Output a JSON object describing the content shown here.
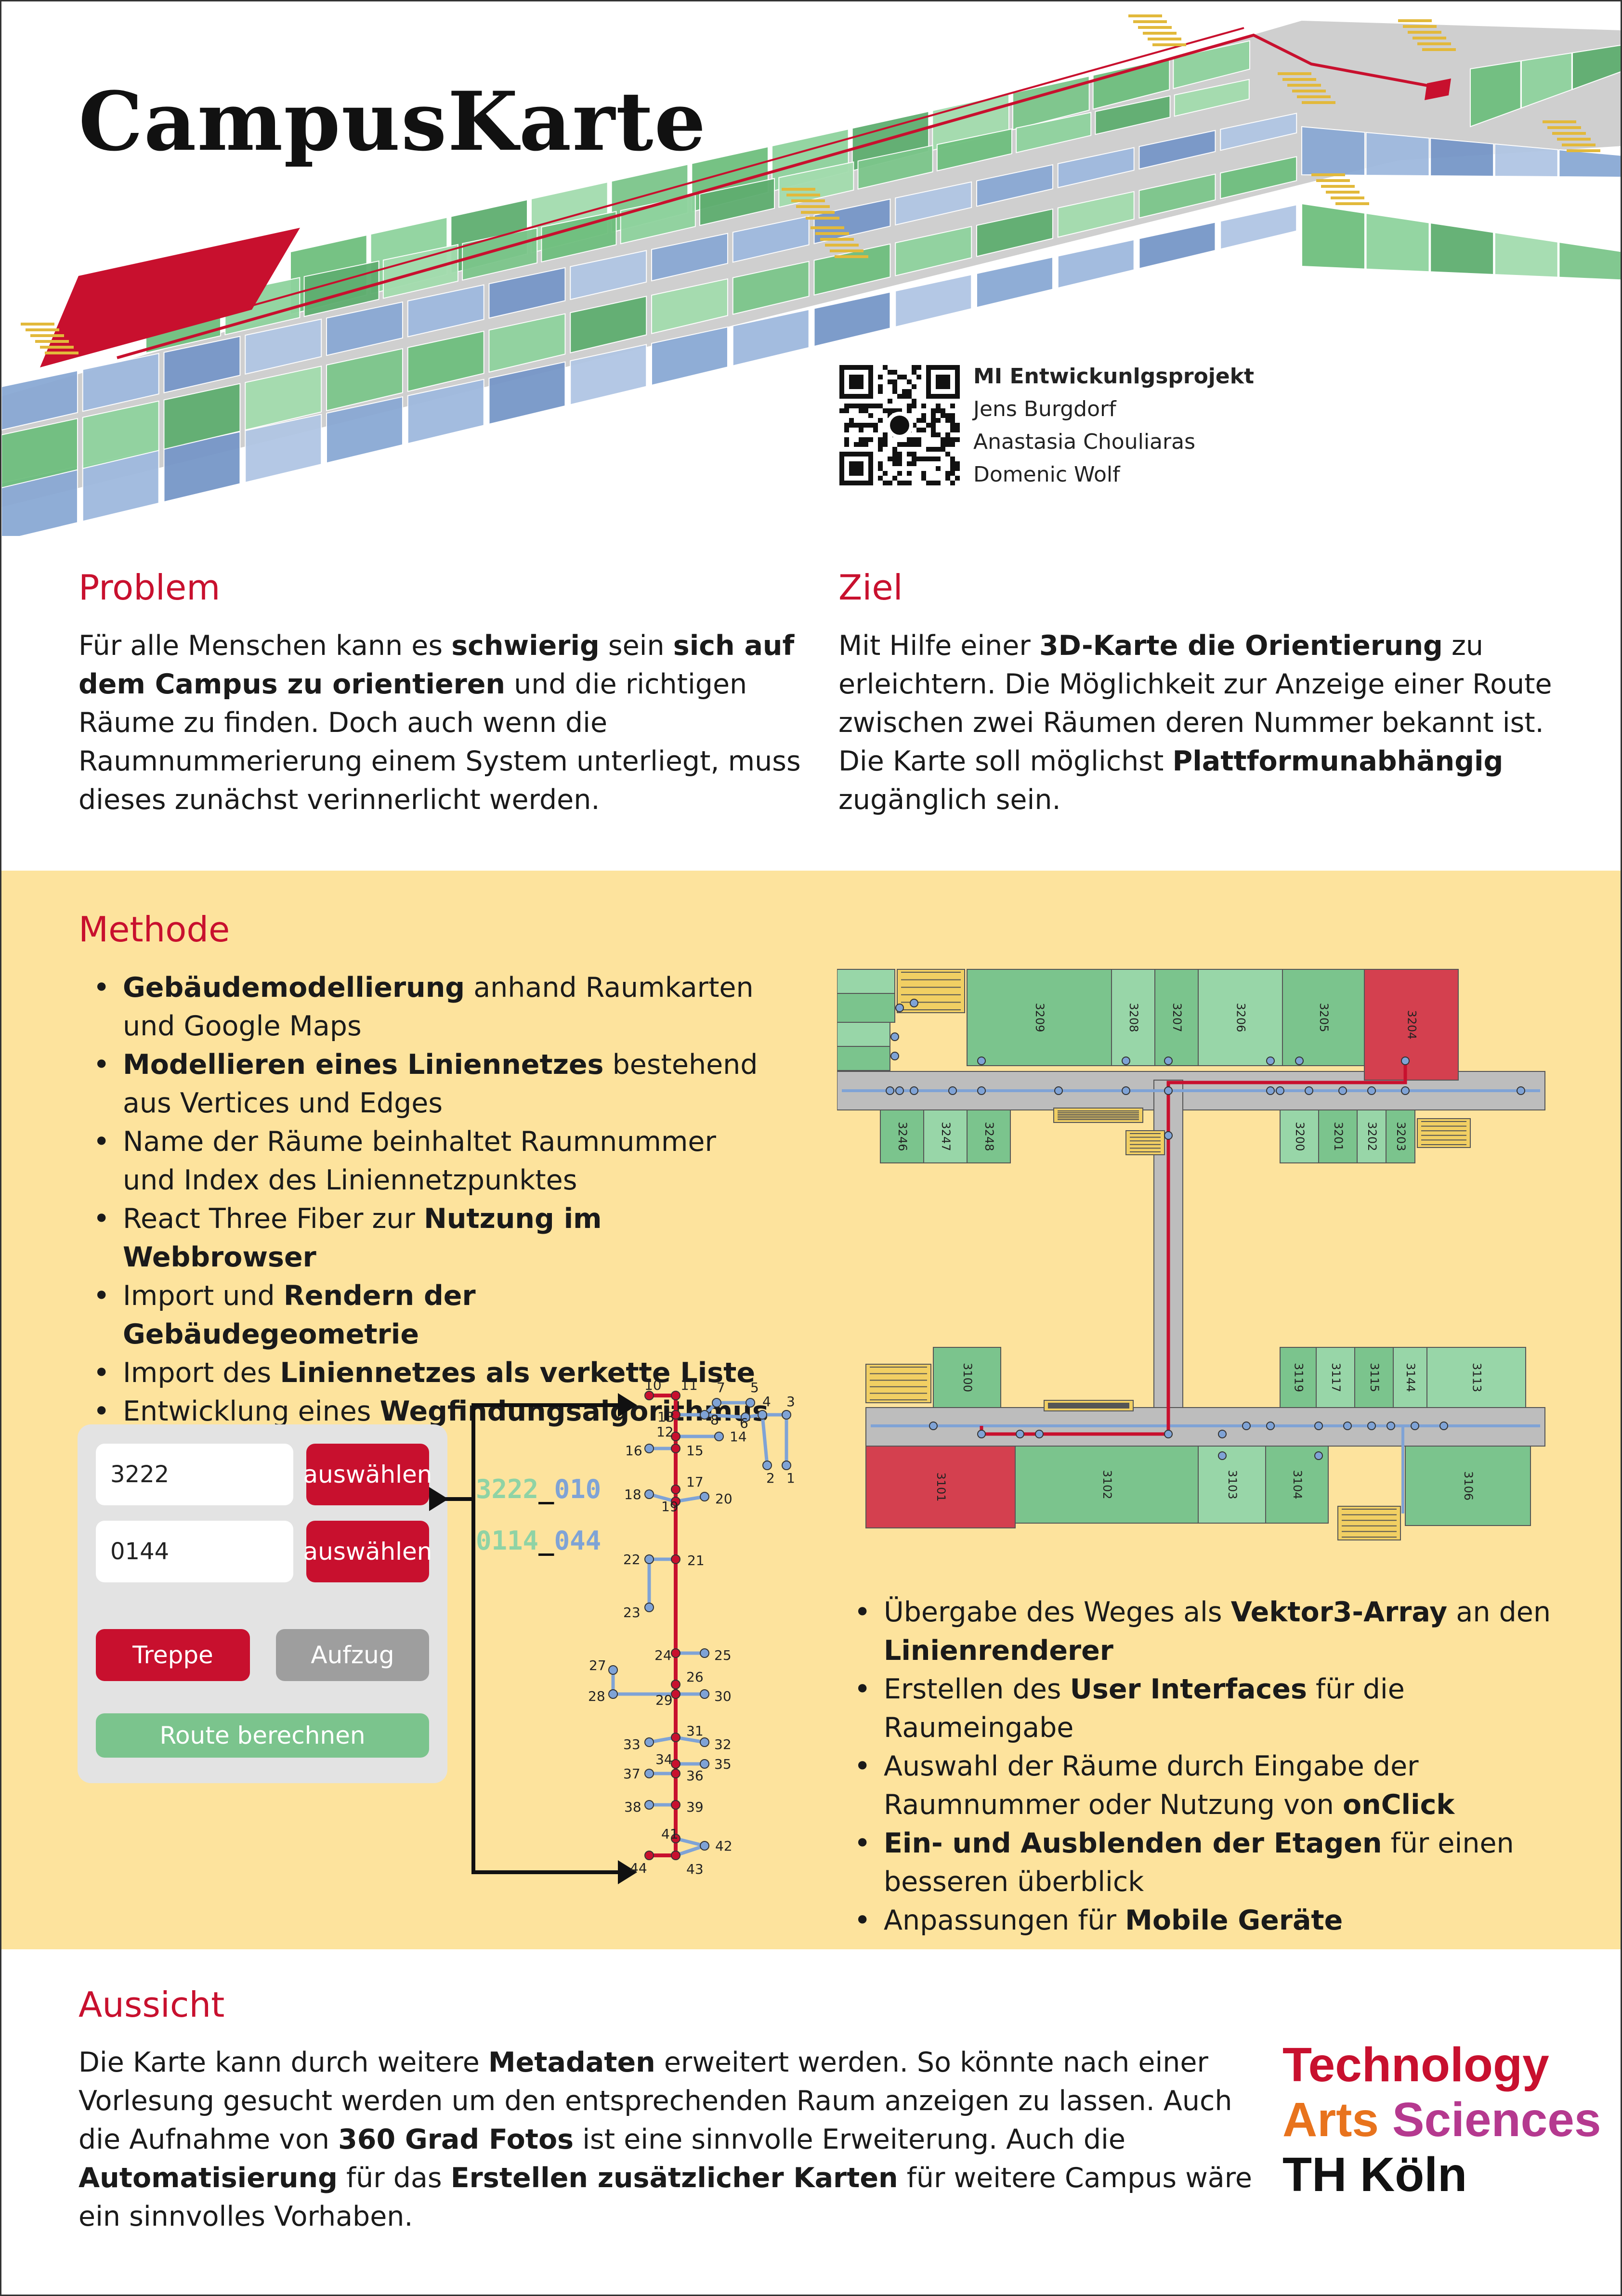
{
  "header": {
    "title": "CampusKarte"
  },
  "credits": {
    "project": "MI Entwickunlgsprojekt",
    "authors": [
      "Jens Burgdorf",
      "Anastasia Chouliaras",
      "Domenic Wolf"
    ]
  },
  "problem": {
    "title": "Problem",
    "parts": [
      {
        "t": "Für alle Menschen kann es ",
        "b": false
      },
      {
        "t": "schwierig",
        "b": true
      },
      {
        "t": " sein ",
        "b": false
      },
      {
        "t": "sich auf dem Campus zu orientieren",
        "b": true
      },
      {
        "t": " und die richtigen Räume zu finden. Doch auch wenn die Raumnummerierung einem System unterliegt, muss dieses zunächst verinnerlicht werden.",
        "b": false
      }
    ]
  },
  "ziel": {
    "title": "Ziel",
    "parts": [
      {
        "t": "Mit Hilfe einer ",
        "b": false
      },
      {
        "t": "3D-Karte die Orientierung",
        "b": true
      },
      {
        "t": " zu erleichtern. Die Möglichkeit zur Anzeige einer Route zwischen zwei Räumen deren Nummer bekannt ist. Die Karte soll möglichst ",
        "b": false
      },
      {
        "t": "Plattformunabhängig",
        "b": true
      },
      {
        "t": " zugänglich sein.",
        "b": false
      }
    ]
  },
  "methode": {
    "title": "Methode",
    "bullets": [
      [
        {
          "t": "Gebäudemodellierung",
          "b": true
        },
        {
          "t": " anhand Raumkarten und Google Maps",
          "b": false
        }
      ],
      [
        {
          "t": "Modellieren eines Liniennetzes",
          "b": true
        },
        {
          "t": " bestehend aus Vertices und Edges",
          "b": false
        }
      ],
      [
        {
          "t": "Name der Räume beinhaltet Raumnummer und Index des Liniennetzpunktes",
          "b": false
        }
      ],
      [
        {
          "t": "React Three Fiber zur ",
          "b": false
        },
        {
          "t": "Nutzung im Webbrowser",
          "b": true
        }
      ],
      [
        {
          "t": "Import und ",
          "b": false
        },
        {
          "t": "Rendern der Gebäudegeometrie",
          "b": true
        }
      ],
      [
        {
          "t": "Import des ",
          "b": false
        },
        {
          "t": "Liniennetzes als verkette Liste",
          "b": true
        }
      ],
      [
        {
          "t": "Entwicklung eines ",
          "b": false
        },
        {
          "t": "Wegfindungsalgorithmus",
          "b": true
        }
      ]
    ],
    "bullets2": [
      [
        {
          "t": "Übergabe des Weges als ",
          "b": false
        },
        {
          "t": "Vektor3-Array",
          "b": true
        },
        {
          "t": " an den ",
          "b": false
        },
        {
          "t": "Linienrenderer",
          "b": true
        }
      ],
      [
        {
          "t": "Erstellen des ",
          "b": false
        },
        {
          "t": "User Interfaces",
          "b": true
        },
        {
          "t": " für die Raumeingabe",
          "b": false
        }
      ],
      [
        {
          "t": "Auswahl der Räume durch Eingabe der Raumnummer oder Nutzung von ",
          "b": false
        },
        {
          "t": "onClick",
          "b": true
        }
      ],
      [
        {
          "t": "Ein- und Ausblenden der Etagen",
          "b": true
        },
        {
          "t": " für einen besseren überblick",
          "b": false
        }
      ],
      [
        {
          "t": "Anpassungen für ",
          "b": false
        },
        {
          "t": "Mobile Geräte",
          "b": true
        }
      ]
    ]
  },
  "ui": {
    "input1": "3222",
    "input2": "0144",
    "select_label": "auswählen",
    "stairs_label": "Treppe",
    "elevator_label": "Aufzug",
    "route_label": "Route berechnen"
  },
  "codes": {
    "a_room": "3222",
    "sep": "_",
    "a_index": "010",
    "b_room": "0114",
    "b_index": "044"
  },
  "network_labels": [
    "1",
    "2",
    "3",
    "4",
    "5",
    "6",
    "7",
    "8",
    "10",
    "11",
    "12",
    "13",
    "14",
    "15",
    "16",
    "17",
    "18",
    "19",
    "20",
    "21",
    "22",
    "23",
    "24",
    "25",
    "26",
    "27",
    "28",
    "29",
    "30",
    "31",
    "32",
    "33",
    "34",
    "35",
    "36",
    "37",
    "38",
    "39",
    "41",
    "42",
    "43",
    "44"
  ],
  "floorplan": {
    "upper_rooms": [
      "3209",
      "3208",
      "3207",
      "3206",
      "3205",
      "3204",
      "3246",
      "3247",
      "3248",
      "3200",
      "3201",
      "3202",
      "3203"
    ],
    "lower_rooms": [
      "3100",
      "3119",
      "3117",
      "3115",
      "3144",
      "3113",
      "3101",
      "3102",
      "3103",
      "3104",
      "3106"
    ]
  },
  "aussicht": {
    "title": "Aussicht",
    "parts": [
      {
        "t": "Die Karte kann durch weitere ",
        "b": false
      },
      {
        "t": "Metadaten",
        "b": true
      },
      {
        "t": " erweitert werden. So könnte nach einer Vorlesung gesucht werden um den entsprechenden Raum anzeigen zu lassen. Auch die Aufnahme von ",
        "b": false
      },
      {
        "t": "360 Grad Fotos",
        "b": true
      },
      {
        "t": " ist eine sinnvolle Erweiterung. Auch die ",
        "b": false
      },
      {
        "t": "Automatisierung",
        "b": true
      },
      {
        "t": " für das ",
        "b": false
      },
      {
        "t": "Erstellen zusätzlicher Karten",
        "b": true
      },
      {
        "t": " für weitere Campus wäre ein sinnvolles Vorhaben.",
        "b": false
      }
    ]
  },
  "logo": {
    "line1": "Technology",
    "line2a": "Arts",
    "line2b": "Sciences",
    "line3": "TH Köln"
  },
  "colors": {
    "accent": "#c8102e",
    "yellow": "#fde39d",
    "room_green": "#7bc48d",
    "path_blue": "#7fa3d6"
  }
}
